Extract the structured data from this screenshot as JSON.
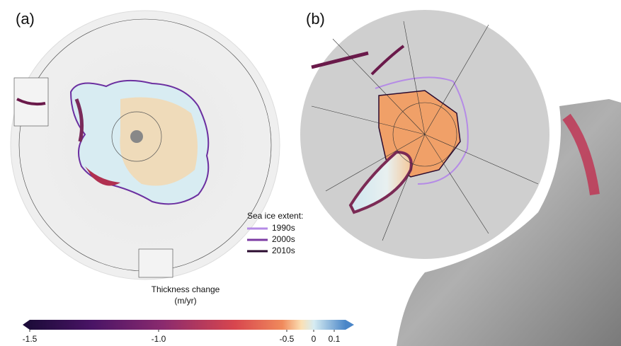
{
  "panels": [
    {
      "label": "(a)"
    },
    {
      "label": "(b)"
    }
  ],
  "legend": {
    "title": "Sea ice extent:",
    "items": [
      {
        "name": "1990s",
        "color": "#b58be6"
      },
      {
        "name": "2000s",
        "color": "#7b3aa2"
      },
      {
        "name": "2010s",
        "color": "#2a0a2e"
      }
    ]
  },
  "colorbar": {
    "title": "Thickness change",
    "units": "(m/yr)",
    "ticks": [
      -1.5,
      {
        "value": -1,
        "label": "-1.0"
      },
      -0.5,
      0,
      0.1
    ]
  }
}
